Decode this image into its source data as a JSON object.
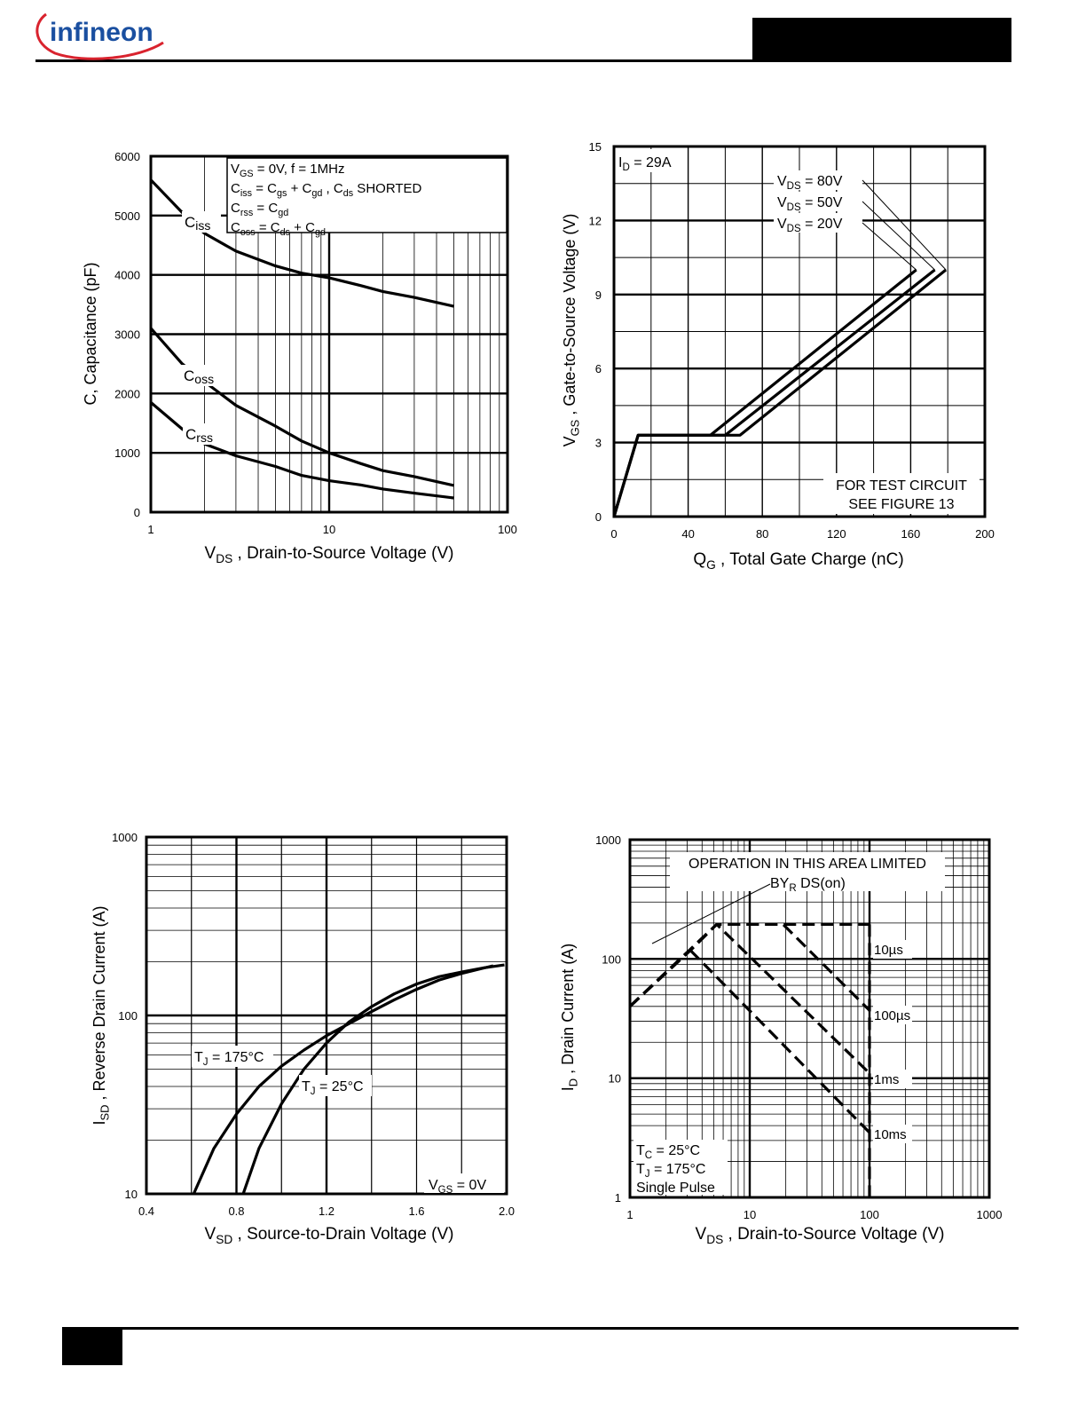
{
  "logo": {
    "text": "infineon",
    "icon": "infineon-logo"
  },
  "colors": {
    "ink": "#000000",
    "background": "#ffffff",
    "logo_red": "#d9232e",
    "logo_blue": "#1a4fa0"
  },
  "chart_data": [
    {
      "id": "capacitance",
      "type": "line",
      "x_scale": "log",
      "xlim": [
        1,
        100
      ],
      "ylim": [
        0,
        6000
      ],
      "xticks": [
        "1",
        "10",
        "100"
      ],
      "yticks": [
        "0",
        "1000",
        "2000",
        "3000",
        "4000",
        "5000",
        "6000"
      ],
      "xlabel": {
        "main": "V",
        "sub": "DS",
        "rest": " , Drain-to-Source Voltage (V)"
      },
      "ylabel": "C, Capacitance (pF)",
      "grid": true,
      "legend_box": [
        "V GS = 0V,        f = 1MHz",
        "C iss = C gs  + C gd ,   C ds  SHORTED",
        "C rss = C gd",
        "C oss = C ds  + C gd"
      ],
      "series": [
        {
          "name": "Ciss",
          "x": [
            1,
            1.5,
            2,
            3,
            5,
            7,
            10,
            15,
            20,
            30,
            50
          ],
          "y": [
            5600,
            5050,
            4700,
            4400,
            4150,
            4030,
            3950,
            3820,
            3720,
            3620,
            3470
          ]
        },
        {
          "name": "Coss",
          "x": [
            1,
            1.5,
            2,
            3,
            5,
            7,
            10,
            15,
            20,
            30,
            50
          ],
          "y": [
            3100,
            2500,
            2200,
            1800,
            1450,
            1200,
            1000,
            820,
            700,
            600,
            450
          ]
        },
        {
          "name": "Crss",
          "x": [
            1,
            1.5,
            2,
            3,
            5,
            7,
            10,
            15,
            20,
            30,
            50
          ],
          "y": [
            1850,
            1400,
            1150,
            950,
            770,
            620,
            530,
            460,
            390,
            320,
            240
          ]
        }
      ]
    },
    {
      "id": "gate-charge",
      "type": "line",
      "xlim": [
        0,
        200
      ],
      "ylim": [
        0,
        15
      ],
      "xticks": [
        "0",
        "40",
        "80",
        "120",
        "160",
        "200"
      ],
      "yticks": [
        "0",
        "3",
        "6",
        "9",
        "12",
        "15"
      ],
      "xlabel": {
        "main": "Q",
        "sub": "G",
        "rest": " , Total Gate Charge (nC)"
      },
      "ylabel": {
        "main": "V",
        "sub": "GS",
        "rest": " , Gate-to-Source Voltage (V)"
      },
      "grid": true,
      "annotation_top_left": "I D  = 29A",
      "annotation_bottom_right": [
        "FOR TEST CIRCUIT",
        "SEE FIGURE 13"
      ],
      "series": [
        {
          "name": "V DS  = 80V",
          "x": [
            0,
            13,
            68,
            179
          ],
          "y": [
            0,
            3.3,
            3.3,
            10
          ]
        },
        {
          "name": "V DS  = 50V",
          "x": [
            0,
            13,
            60,
            173
          ],
          "y": [
            0,
            3.3,
            3.3,
            10
          ]
        },
        {
          "name": "V DS  = 20V",
          "x": [
            0,
            13,
            52,
            163
          ],
          "y": [
            0,
            3.3,
            3.3,
            10
          ]
        }
      ]
    },
    {
      "id": "body-diode",
      "type": "line",
      "y_scale": "log",
      "xlim": [
        0.4,
        2.0
      ],
      "ylim": [
        10,
        1000
      ],
      "xticks": [
        "0.4",
        "0.8",
        "1.2",
        "1.6",
        "2.0"
      ],
      "yticks": [
        "10",
        "100",
        "1000"
      ],
      "xlabel": {
        "main": "V",
        "sub": "SD",
        "rest": " , Source-to-Drain Voltage (V)"
      },
      "ylabel": {
        "main": "I",
        "sub": "SD",
        "rest": " , Reverse Drain Current (A)"
      },
      "grid": true,
      "annotation_bottom_right": "V GS  = 0V",
      "series": [
        {
          "name": "T J = 175°C",
          "x": [
            0.61,
            0.7,
            0.8,
            0.9,
            1.0,
            1.1,
            1.2,
            1.3,
            1.4,
            1.5,
            1.6,
            1.7,
            1.8,
            1.94
          ],
          "y": [
            10,
            18,
            28,
            40,
            52,
            64,
            77,
            90,
            105,
            122,
            140,
            158,
            172,
            190
          ]
        },
        {
          "name": "T J = 25°C",
          "x": [
            0.83,
            0.9,
            1.0,
            1.1,
            1.2,
            1.3,
            1.4,
            1.5,
            1.6,
            1.7,
            1.8,
            1.9,
            1.99
          ],
          "y": [
            10,
            18,
            32,
            50,
            70,
            92,
            112,
            132,
            150,
            165,
            175,
            185,
            192
          ]
        }
      ]
    },
    {
      "id": "safe-operating-area",
      "type": "line",
      "x_scale": "log",
      "y_scale": "log",
      "xlim": [
        1,
        1000
      ],
      "ylim": [
        1,
        1000
      ],
      "xticks": [
        "1",
        "10",
        "100",
        "1000"
      ],
      "yticks": [
        "1",
        "10",
        "100",
        "1000"
      ],
      "xlabel": {
        "main": "V",
        "sub": "DS",
        "rest": " , Drain-to-Source Voltage (V)"
      },
      "ylabel": {
        "main": "I",
        "sub": "D",
        "rest": " , Drain Current (A)"
      },
      "grid": true,
      "annotation_top": [
        "OPERATION IN THIS AREA LIMITED",
        "BY R DS(on)"
      ],
      "conditions": [
        "T C  = 25°C",
        "T J  = 175°C",
        "Single Pulse"
      ],
      "series": [
        {
          "name": "10µs",
          "x": [
            1,
            5.3,
            100
          ],
          "y": [
            40,
            195,
            195
          ]
        },
        {
          "name": "100µs",
          "x": [
            1,
            5.3,
            19,
            100
          ],
          "y": [
            40,
            195,
            195,
            37
          ]
        },
        {
          "name": "1ms",
          "x": [
            1,
            3.2,
            5.3,
            100
          ],
          "y": [
            40,
            118,
            195,
            11
          ]
        },
        {
          "name": "10ms",
          "x": [
            3.2,
            100
          ],
          "y": [
            118,
            3.5
          ]
        }
      ],
      "limit_line": {
        "x": 100,
        "ylim": [
          1,
          195
        ]
      }
    }
  ]
}
